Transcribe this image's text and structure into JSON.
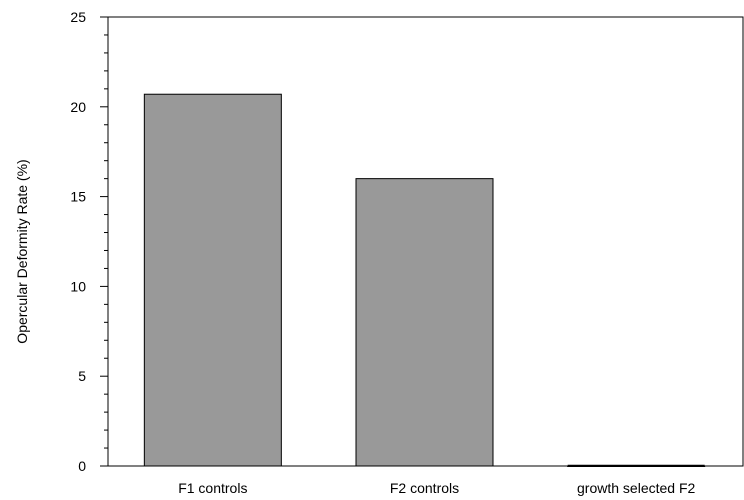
{
  "chart_data": {
    "type": "bar",
    "categories": [
      "F1 controls",
      "F2 controls",
      "growth selected F2"
    ],
    "values": [
      20.7,
      16.0,
      0
    ],
    "ylabel": "Opercular Deformity Rate (%)",
    "ylim": [
      0,
      25
    ],
    "yticks": [
      0,
      5,
      10,
      15,
      20,
      25
    ],
    "grid": false,
    "bar_color": "#999999",
    "bar_edge_color": "#000000"
  }
}
